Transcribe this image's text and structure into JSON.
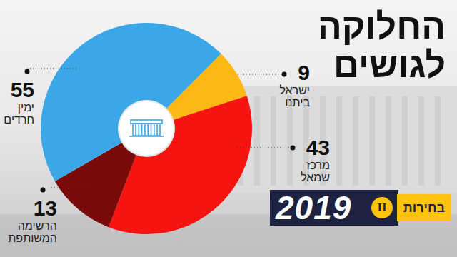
{
  "chart_data": {
    "type": "pie",
    "title": "החלוקה לגושים",
    "categories": [
      "ישראל ביתנו",
      "מרכז שמאל",
      "הרשימה המשותפת",
      "ימין חרדים"
    ],
    "values": [
      9,
      43,
      13,
      55
    ],
    "colors": [
      "#fdb913",
      "#f5140f",
      "#7a0a0a",
      "#3ba7e6"
    ],
    "data_labels": true,
    "badge": {
      "text": "בחירות",
      "year": "2019",
      "round": "II"
    }
  }
}
